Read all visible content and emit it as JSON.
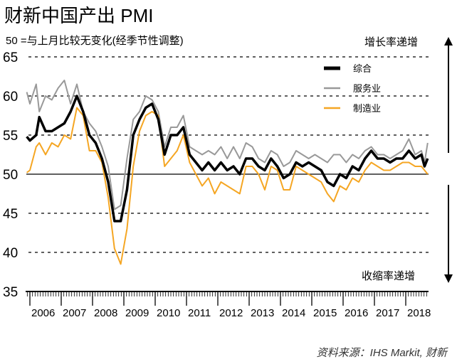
{
  "chart_data": {
    "type": "line",
    "title": "财新中国产出 PMI",
    "subtitle": "50 =与上月比较无变化(经季节性调整)",
    "annotations": {
      "up": "增长率递增",
      "down": "收缩率递增"
    },
    "source": "资料来源：IHS Markit, 财新",
    "ylim": [
      35,
      65
    ],
    "yticks": [
      35,
      40,
      45,
      50,
      55,
      60,
      65
    ],
    "xlim": [
      2005.9,
      2018.7
    ],
    "xtick_labels": [
      "2006",
      "2007",
      "2008",
      "2009",
      "2010",
      "2011",
      "2012",
      "2013",
      "2014",
      "2015",
      "2016",
      "2017",
      "2018"
    ],
    "grid": "dashed horizontal",
    "legend_position": "top-right",
    "x": [
      2005.9,
      2006.0,
      2006.2,
      2006.3,
      2006.5,
      2006.7,
      2006.9,
      2007.1,
      2007.3,
      2007.5,
      2007.7,
      2007.9,
      2008.1,
      2008.3,
      2008.5,
      2008.7,
      2008.9,
      2009.1,
      2009.3,
      2009.5,
      2009.7,
      2009.9,
      2010.1,
      2010.3,
      2010.5,
      2010.7,
      2010.9,
      2011.1,
      2011.3,
      2011.5,
      2011.7,
      2011.9,
      2012.1,
      2012.3,
      2012.5,
      2012.7,
      2012.9,
      2013.1,
      2013.3,
      2013.5,
      2013.7,
      2013.9,
      2014.1,
      2014.3,
      2014.5,
      2014.7,
      2014.9,
      2015.1,
      2015.3,
      2015.5,
      2015.7,
      2015.9,
      2016.1,
      2016.3,
      2016.5,
      2016.7,
      2016.9,
      2017.1,
      2017.3,
      2017.5,
      2017.7,
      2017.9,
      2018.1,
      2018.3,
      2018.5,
      2018.6,
      2018.7
    ],
    "series": [
      {
        "name": "综合",
        "color": "#000000",
        "values": [
          54.8,
          54.3,
          55.0,
          57.3,
          55.5,
          55.5,
          56.0,
          56.5,
          58.0,
          60.0,
          58.0,
          55.0,
          54.0,
          52.0,
          49.0,
          44.0,
          44.0,
          48.0,
          55.0,
          57.0,
          58.5,
          59.0,
          57.0,
          52.5,
          55.0,
          55.0,
          56.0,
          52.5,
          51.5,
          50.5,
          51.5,
          50.5,
          51.5,
          50.5,
          51.0,
          50.0,
          52.0,
          52.0,
          51.0,
          50.5,
          52.0,
          51.0,
          49.5,
          50.0,
          51.5,
          51.0,
          51.5,
          51.0,
          50.5,
          49.0,
          48.5,
          50.0,
          49.5,
          51.0,
          50.5,
          52.0,
          53.0,
          52.0,
          52.0,
          51.5,
          52.0,
          52.0,
          53.0,
          52.0,
          52.5,
          51.0,
          52.0
        ]
      },
      {
        "name": "服务业",
        "color": "#999999",
        "values": [
          60.5,
          59.0,
          61.5,
          58.0,
          60.0,
          59.5,
          61.0,
          62.0,
          59.0,
          61.5,
          58.0,
          56.5,
          55.5,
          53.5,
          51.0,
          45.5,
          46.0,
          52.0,
          57.0,
          58.0,
          60.0,
          59.5,
          58.0,
          53.5,
          56.0,
          56.0,
          57.5,
          53.5,
          53.0,
          52.5,
          53.0,
          52.5,
          53.5,
          52.0,
          53.5,
          52.0,
          54.0,
          53.5,
          52.0,
          51.5,
          53.0,
          52.5,
          51.0,
          51.5,
          53.0,
          52.5,
          52.0,
          52.5,
          52.0,
          51.5,
          52.5,
          52.5,
          51.5,
          52.5,
          52.0,
          53.0,
          53.5,
          52.5,
          52.5,
          52.0,
          52.5,
          53.0,
          54.5,
          52.5,
          53.0,
          51.5,
          54.0
        ]
      },
      {
        "name": "制造业",
        "color": "#F5A623",
        "values": [
          50.2,
          50.5,
          53.5,
          54.0,
          52.5,
          54.0,
          53.5,
          55.0,
          54.5,
          58.5,
          57.5,
          53.0,
          53.0,
          51.5,
          47.0,
          40.5,
          38.5,
          43.0,
          51.0,
          55.5,
          57.5,
          58.0,
          57.5,
          51.0,
          52.0,
          53.0,
          55.0,
          51.5,
          50.0,
          48.5,
          49.5,
          47.5,
          49.0,
          48.5,
          48.0,
          47.5,
          51.0,
          51.0,
          50.0,
          48.0,
          51.0,
          50.5,
          48.0,
          48.0,
          51.0,
          50.5,
          50.0,
          49.5,
          49.0,
          47.5,
          46.5,
          48.5,
          48.0,
          49.5,
          49.0,
          50.5,
          51.5,
          51.0,
          50.5,
          50.5,
          51.0,
          51.5,
          51.5,
          51.0,
          51.0,
          50.5,
          50.0
        ]
      }
    ]
  }
}
